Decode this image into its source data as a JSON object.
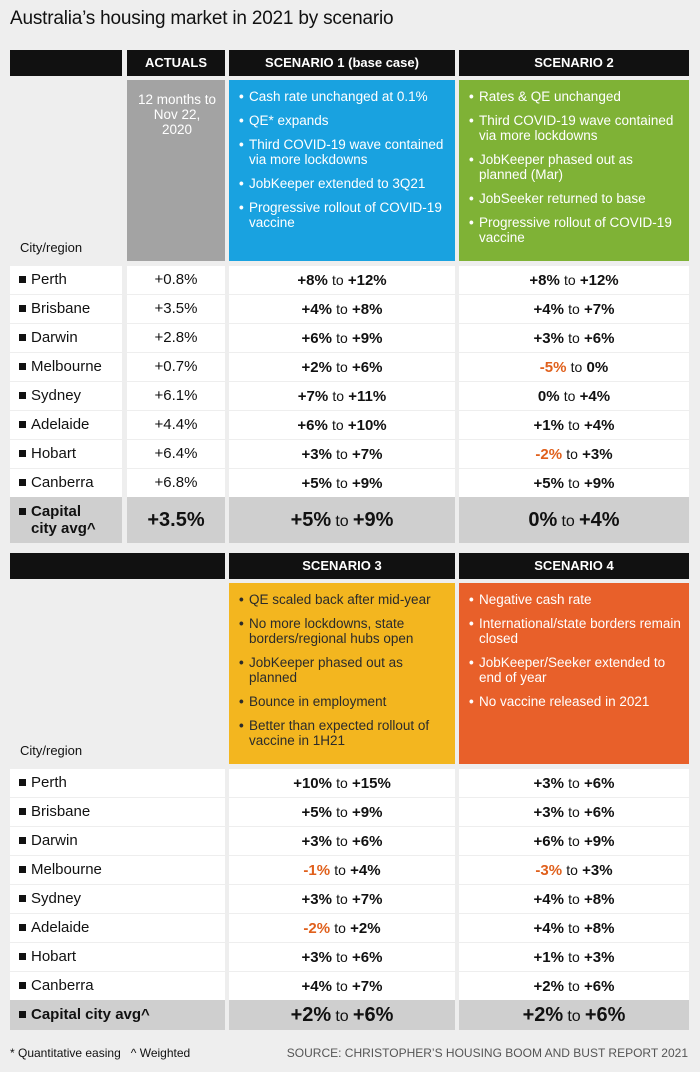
{
  "title": "Australia’s housing market in 2021 by scenario",
  "city_header": "City/region",
  "chart_data": [
    {
      "type": "table",
      "columns": [
        "ACTUALS",
        "SCENARIO 1 (base case)",
        "SCENARIO 2"
      ],
      "descriptions": {
        "actuals": "12 months to Nov 22, 2020",
        "scenario1": [
          "Cash rate unchanged at 0.1%",
          "QE* expands",
          "Third COVID-19 wave contained via more lockdowns",
          "JobKeeper extended to 3Q21",
          "Progressive rollout of COVID-19 vaccine"
        ],
        "scenario2": [
          "Rates & QE unchanged",
          "Third COVID-19 wave contained via more lockdowns",
          "JobKeeper phased out as planned (Mar)",
          "JobSeeker returned to base",
          "Progressive rollout of COVID-19 vaccine"
        ]
      },
      "rows": [
        {
          "city": "Perth",
          "actual": "+0.8%",
          "s1": [
            "+8%",
            "+12%"
          ],
          "s2": [
            "+8%",
            "+12%"
          ]
        },
        {
          "city": "Brisbane",
          "actual": "+3.5%",
          "s1": [
            "+4%",
            "+8%"
          ],
          "s2": [
            "+4%",
            "+7%"
          ]
        },
        {
          "city": "Darwin",
          "actual": "+2.8%",
          "s1": [
            "+6%",
            "+9%"
          ],
          "s2": [
            "+3%",
            "+6%"
          ]
        },
        {
          "city": "Melbourne",
          "actual": "+0.7%",
          "s1": [
            "+2%",
            "+6%"
          ],
          "s2": [
            "-5%",
            "0%"
          ]
        },
        {
          "city": "Sydney",
          "actual": "+6.1%",
          "s1": [
            "+7%",
            "+11%"
          ],
          "s2": [
            "0%",
            "+4%"
          ]
        },
        {
          "city": "Adelaide",
          "actual": "+4.4%",
          "s1": [
            "+6%",
            "+10%"
          ],
          "s2": [
            "+1%",
            "+4%"
          ]
        },
        {
          "city": "Hobart",
          "actual": "+6.4%",
          "s1": [
            "+3%",
            "+7%"
          ],
          "s2": [
            "-2%",
            "+3%"
          ]
        },
        {
          "city": "Canberra",
          "actual": "+6.8%",
          "s1": [
            "+5%",
            "+9%"
          ],
          "s2": [
            "+5%",
            "+9%"
          ]
        }
      ],
      "avg": {
        "label_line1": "Capital",
        "label_line2": "city avg^",
        "actual": "+3.5%",
        "s1": [
          "+5%",
          "+9%"
        ],
        "s2": [
          "0%",
          "+4%"
        ]
      }
    },
    {
      "type": "table",
      "columns": [
        "SCENARIO 3",
        "SCENARIO 4"
      ],
      "descriptions": {
        "scenario3": [
          "QE scaled back after mid-year",
          "No more lockdowns, state borders/regional hubs open",
          "JobKeeper phased out as planned",
          "Bounce in employment",
          "Better than expected rollout of vaccine in 1H21"
        ],
        "scenario4": [
          "Negative cash rate",
          "International/state borders remain closed",
          "JobKeeper/Seeker extended to end of year",
          "No vaccine released in 2021"
        ]
      },
      "rows": [
        {
          "city": "Perth",
          "s3": [
            "+10%",
            "+15%"
          ],
          "s4": [
            "+3%",
            "+6%"
          ]
        },
        {
          "city": "Brisbane",
          "s3": [
            "+5%",
            "+9%"
          ],
          "s4": [
            "+3%",
            "+6%"
          ]
        },
        {
          "city": "Darwin",
          "s3": [
            "+3%",
            "+6%"
          ],
          "s4": [
            "+6%",
            "+9%"
          ]
        },
        {
          "city": "Melbourne",
          "s3": [
            "-1%",
            "+4%"
          ],
          "s4": [
            "-3%",
            "+3%"
          ]
        },
        {
          "city": "Sydney",
          "s3": [
            "+3%",
            "+7%"
          ],
          "s4": [
            "+4%",
            "+8%"
          ]
        },
        {
          "city": "Adelaide",
          "s3": [
            "-2%",
            "+2%"
          ],
          "s4": [
            "+4%",
            "+8%"
          ]
        },
        {
          "city": "Hobart",
          "s3": [
            "+3%",
            "+6%"
          ],
          "s4": [
            "+1%",
            "+3%"
          ]
        },
        {
          "city": "Canberra",
          "s3": [
            "+4%",
            "+7%"
          ],
          "s4": [
            "+2%",
            "+6%"
          ]
        }
      ],
      "avg": {
        "label": "Capital city avg^",
        "s3": [
          "+2%",
          "+6%"
        ],
        "s4": [
          "+2%",
          "+6%"
        ]
      }
    }
  ],
  "range_joiner": "to",
  "colors": {
    "actuals": "#a3a3a3",
    "scenario1": "#19a2e0",
    "scenario2": "#7fb236",
    "scenario3": "#f3b61f",
    "scenario4": "#e8602a",
    "negative": "#e0601c"
  },
  "footer": {
    "note": "* Quantitative easing   ^ Weighted",
    "source": "SOURCE: CHRISTOPHER’S HOUSING BOOM AND BUST REPORT 2021"
  }
}
